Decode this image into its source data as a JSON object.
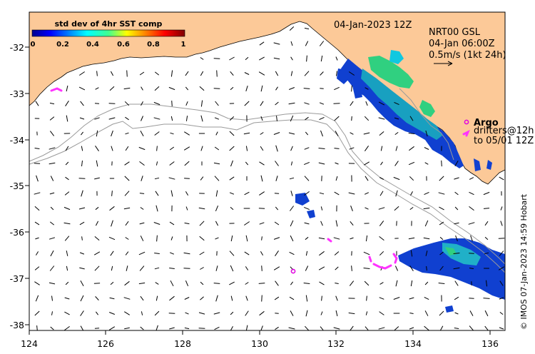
{
  "date_label": "04-Jan-2023 12Z",
  "colorbar": {
    "title": "std dev of 4hr SST comp",
    "ticks": [
      "0",
      "0.2",
      "0.4",
      "0.6",
      "0.8",
      "1"
    ]
  },
  "current_info": {
    "line1": "NRT00 GSL",
    "line2": "04-Jan 06:00Z",
    "line3": "0.5m/s (1kt 24h)"
  },
  "argo_label": "Argo",
  "drifters": {
    "line1": "drifters@12h",
    "line2": "to 05/01 12Z"
  },
  "credit": "© IMOS 07-Jan-2023 14:59 Hobart",
  "x_axis_ticks": [
    "124",
    "126",
    "128",
    "130",
    "132",
    "134",
    "136"
  ],
  "y_axis_ticks": [
    "-32",
    "-33",
    "-34",
    "-35",
    "-36",
    "-37",
    "-38"
  ],
  "colors": {
    "land": "#fcc998",
    "argo": "#e000e0",
    "drifters": "#ff33ff",
    "contour": "#9a9a9a"
  }
}
